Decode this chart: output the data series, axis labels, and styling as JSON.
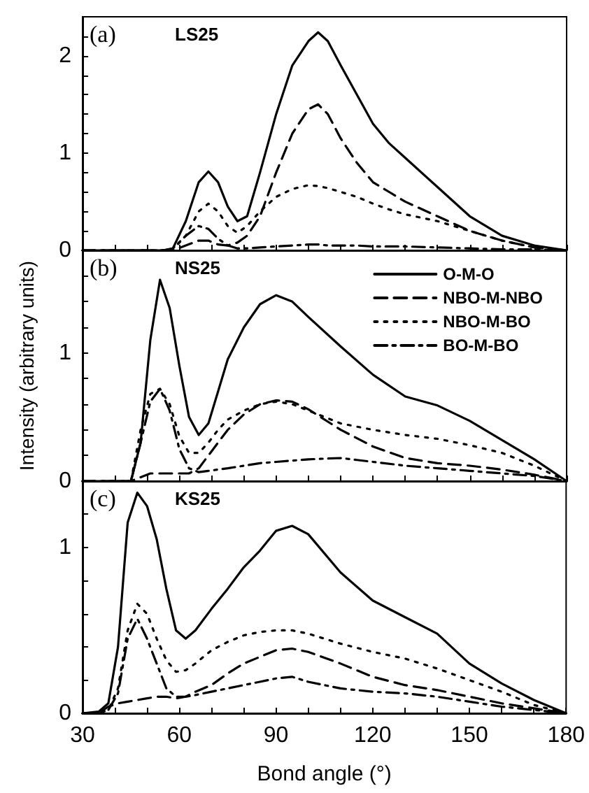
{
  "chart_data": [
    {
      "type": "line",
      "annotations": [
        "(a)",
        "LS25"
      ],
      "tick_labels": "y",
      "legend": false,
      "grid": false,
      "marker": "none",
      "x": [
        30,
        55,
        58,
        62,
        66,
        69,
        72,
        75,
        78,
        81,
        85,
        90,
        95,
        100,
        103,
        106,
        110,
        115,
        120,
        125,
        130,
        140,
        150,
        160,
        170,
        180
      ],
      "xlim": [
        30,
        180
      ],
      "xticks": [
        {
          "value": 30,
          "label": null
        },
        {
          "value": 40,
          "label": null
        },
        {
          "value": 50,
          "label": null
        },
        {
          "value": 60,
          "label": null
        },
        {
          "value": 70,
          "label": null
        },
        {
          "value": 80,
          "label": null
        },
        {
          "value": 90,
          "label": null
        },
        {
          "value": 100,
          "label": null
        },
        {
          "value": 110,
          "label": null
        },
        {
          "value": 120,
          "label": null
        },
        {
          "value": 130,
          "label": null
        },
        {
          "value": 140,
          "label": null
        },
        {
          "value": 150,
          "label": null
        },
        {
          "value": 160,
          "label": null
        },
        {
          "value": 170,
          "label": null
        },
        {
          "value": 180,
          "label": null
        }
      ],
      "ylim": [
        0,
        2.4
      ],
      "yticks": [
        0,
        {
          "value": 0.2,
          "label": null
        },
        {
          "value": 0.4,
          "label": null
        },
        {
          "value": 0.6,
          "label": null
        },
        {
          "value": 0.8,
          "label": null
        },
        1,
        {
          "value": 1.2,
          "label": null
        },
        {
          "value": 1.4,
          "label": null
        },
        {
          "value": 1.6,
          "label": null
        },
        {
          "value": 1.8,
          "label": null
        },
        2,
        {
          "value": 2.2,
          "label": null
        }
      ],
      "series": [
        {
          "color": "#000000",
          "line_style": "solid",
          "values": [
            0,
            0,
            0.02,
            0.3,
            0.7,
            0.81,
            0.7,
            0.45,
            0.3,
            0.35,
            0.8,
            1.4,
            1.9,
            2.15,
            2.24,
            2.15,
            1.9,
            1.6,
            1.3,
            1.1,
            0.95,
            0.65,
            0.35,
            0.15,
            0.05,
            0
          ]
        },
        {
          "color": "#000000",
          "line_style": "dashed",
          "values": [
            0,
            0,
            0,
            0.05,
            0.1,
            0.1,
            0.06,
            0.05,
            0.08,
            0.15,
            0.35,
            0.8,
            1.2,
            1.45,
            1.5,
            1.4,
            1.15,
            0.9,
            0.7,
            0.6,
            0.5,
            0.35,
            0.2,
            0.1,
            0.03,
            0
          ]
        },
        {
          "color": "#000000",
          "line_style": "dotted",
          "values": [
            0,
            0,
            0.01,
            0.15,
            0.4,
            0.48,
            0.4,
            0.25,
            0.18,
            0.25,
            0.4,
            0.55,
            0.63,
            0.67,
            0.66,
            0.64,
            0.6,
            0.55,
            0.48,
            0.42,
            0.37,
            0.3,
            0.2,
            0.1,
            0.03,
            0
          ]
        },
        {
          "color": "#000000",
          "line_style": "dashdot",
          "values": [
            0,
            0,
            0.02,
            0.15,
            0.25,
            0.22,
            0.12,
            0.05,
            0.02,
            0.02,
            0.03,
            0.04,
            0.05,
            0.06,
            0.06,
            0.05,
            0.05,
            0.05,
            0.04,
            0.04,
            0.04,
            0.03,
            0.02,
            0.01,
            0.01,
            0
          ]
        }
      ]
    },
    {
      "type": "line",
      "annotations": [
        "(b)",
        "NS25"
      ],
      "tick_labels": "y",
      "legend": "top right",
      "grid": false,
      "marker": "none",
      "ylabel": "Intensity (arbitrary units)",
      "x": [
        30,
        45,
        48,
        51,
        54,
        57,
        60,
        63,
        66,
        69,
        72,
        75,
        80,
        85,
        90,
        95,
        100,
        110,
        120,
        130,
        140,
        150,
        160,
        170,
        180
      ],
      "xlim": [
        30,
        180
      ],
      "xticks": [
        {
          "value": 30,
          "label": null
        },
        {
          "value": 40,
          "label": null
        },
        {
          "value": 50,
          "label": null
        },
        {
          "value": 60,
          "label": null
        },
        {
          "value": 70,
          "label": null
        },
        {
          "value": 80,
          "label": null
        },
        {
          "value": 90,
          "label": null
        },
        {
          "value": 100,
          "label": null
        },
        {
          "value": 110,
          "label": null
        },
        {
          "value": 120,
          "label": null
        },
        {
          "value": 130,
          "label": null
        },
        {
          "value": 140,
          "label": null
        },
        {
          "value": 150,
          "label": null
        },
        {
          "value": 160,
          "label": null
        },
        {
          "value": 170,
          "label": null
        },
        {
          "value": 180,
          "label": null
        }
      ],
      "ylim": [
        0,
        1.8
      ],
      "yticks": [
        0,
        {
          "value": 0.2,
          "label": null
        },
        {
          "value": 0.4,
          "label": null
        },
        {
          "value": 0.6,
          "label": null
        },
        {
          "value": 0.8,
          "label": null
        },
        1,
        {
          "value": 1.2,
          "label": null
        },
        {
          "value": 1.4,
          "label": null
        },
        {
          "value": 1.6,
          "label": null
        }
      ],
      "series": [
        {
          "name": "O-M-O",
          "color": "#000000",
          "line_style": "solid",
          "values": [
            0,
            0,
            0.3,
            1.1,
            1.57,
            1.35,
            0.9,
            0.5,
            0.36,
            0.45,
            0.7,
            0.95,
            1.2,
            1.38,
            1.45,
            1.4,
            1.28,
            1.05,
            0.83,
            0.66,
            0.59,
            0.47,
            0.32,
            0.17,
            0
          ]
        },
        {
          "name": "NBO-M-NBO",
          "color": "#000000",
          "line_style": "dashed",
          "values": [
            0,
            0,
            0.03,
            0.06,
            0.06,
            0.06,
            0.06,
            0.06,
            0.1,
            0.2,
            0.3,
            0.4,
            0.52,
            0.6,
            0.63,
            0.62,
            0.56,
            0.4,
            0.27,
            0.18,
            0.14,
            0.12,
            0.09,
            0.05,
            0
          ]
        },
        {
          "name": "NBO-M-BO",
          "color": "#000000",
          "line_style": "dotted",
          "values": [
            0,
            0,
            0.4,
            0.68,
            0.72,
            0.6,
            0.35,
            0.22,
            0.22,
            0.3,
            0.4,
            0.48,
            0.55,
            0.6,
            0.62,
            0.6,
            0.55,
            0.45,
            0.4,
            0.36,
            0.33,
            0.28,
            0.22,
            0.12,
            0
          ]
        },
        {
          "name": "BO-M-BO",
          "color": "#000000",
          "line_style": "dashdot",
          "values": [
            0,
            0,
            0.3,
            0.62,
            0.72,
            0.55,
            0.25,
            0.1,
            0.07,
            0.08,
            0.09,
            0.1,
            0.12,
            0.14,
            0.15,
            0.16,
            0.17,
            0.18,
            0.15,
            0.12,
            0.1,
            0.08,
            0.06,
            0.04,
            0
          ]
        }
      ]
    },
    {
      "type": "line",
      "annotations": [
        "(c)",
        "KS25"
      ],
      "legend": false,
      "grid": false,
      "marker": "none",
      "xlabel": "Bond angle (°)",
      "x": [
        30,
        35,
        38,
        41,
        44,
        47,
        50,
        53,
        56,
        59,
        62,
        65,
        70,
        75,
        80,
        85,
        90,
        95,
        100,
        110,
        120,
        130,
        140,
        150,
        160,
        170,
        180
      ],
      "xlim": [
        30,
        180
      ],
      "xticks": [
        {
          "value": 30,
          "label": "30"
        },
        {
          "value": 40,
          "label": null
        },
        {
          "value": 50,
          "label": null
        },
        {
          "value": 60,
          "label": "60"
        },
        {
          "value": 70,
          "label": null
        },
        {
          "value": 80,
          "label": null
        },
        {
          "value": 90,
          "label": "90"
        },
        {
          "value": 100,
          "label": null
        },
        {
          "value": 110,
          "label": null
        },
        {
          "value": 120,
          "label": "120"
        },
        {
          "value": 130,
          "label": null
        },
        {
          "value": 140,
          "label": null
        },
        {
          "value": 150,
          "label": "150"
        },
        {
          "value": 160,
          "label": null
        },
        {
          "value": 170,
          "label": null
        },
        {
          "value": 180,
          "label": "180"
        }
      ],
      "ylim": [
        0,
        1.4
      ],
      "yticks": [
        0,
        {
          "value": 0.2,
          "label": null
        },
        {
          "value": 0.4,
          "label": null
        },
        {
          "value": 0.6,
          "label": null
        },
        {
          "value": 0.8,
          "label": null
        },
        1,
        {
          "value": 1.2,
          "label": null
        }
      ],
      "series": [
        {
          "color": "#000000",
          "line_style": "solid",
          "values": [
            0,
            0.01,
            0.06,
            0.4,
            1.15,
            1.33,
            1.25,
            1.05,
            0.75,
            0.5,
            0.45,
            0.5,
            0.63,
            0.75,
            0.88,
            0.98,
            1.1,
            1.13,
            1.08,
            0.85,
            0.68,
            0.58,
            0.48,
            0.3,
            0.18,
            0.08,
            0
          ]
        },
        {
          "color": "#000000",
          "line_style": "dashed",
          "values": [
            0,
            0,
            0.04,
            0.06,
            0.07,
            0.08,
            0.09,
            0.1,
            0.1,
            0.09,
            0.1,
            0.13,
            0.17,
            0.24,
            0.3,
            0.34,
            0.38,
            0.39,
            0.37,
            0.3,
            0.22,
            0.17,
            0.14,
            0.1,
            0.06,
            0.03,
            0
          ]
        },
        {
          "color": "#000000",
          "line_style": "dotted",
          "values": [
            0,
            0,
            0.02,
            0.15,
            0.5,
            0.66,
            0.6,
            0.45,
            0.32,
            0.25,
            0.26,
            0.3,
            0.38,
            0.43,
            0.47,
            0.49,
            0.5,
            0.5,
            0.48,
            0.42,
            0.37,
            0.33,
            0.27,
            0.2,
            0.13,
            0.05,
            0
          ]
        },
        {
          "color": "#000000",
          "line_style": "dashdot",
          "values": [
            0,
            0,
            0.02,
            0.12,
            0.45,
            0.57,
            0.45,
            0.3,
            0.15,
            0.1,
            0.1,
            0.11,
            0.13,
            0.15,
            0.17,
            0.19,
            0.21,
            0.22,
            0.19,
            0.15,
            0.13,
            0.12,
            0.1,
            0.07,
            0.04,
            0.02,
            0
          ]
        }
      ]
    }
  ]
}
